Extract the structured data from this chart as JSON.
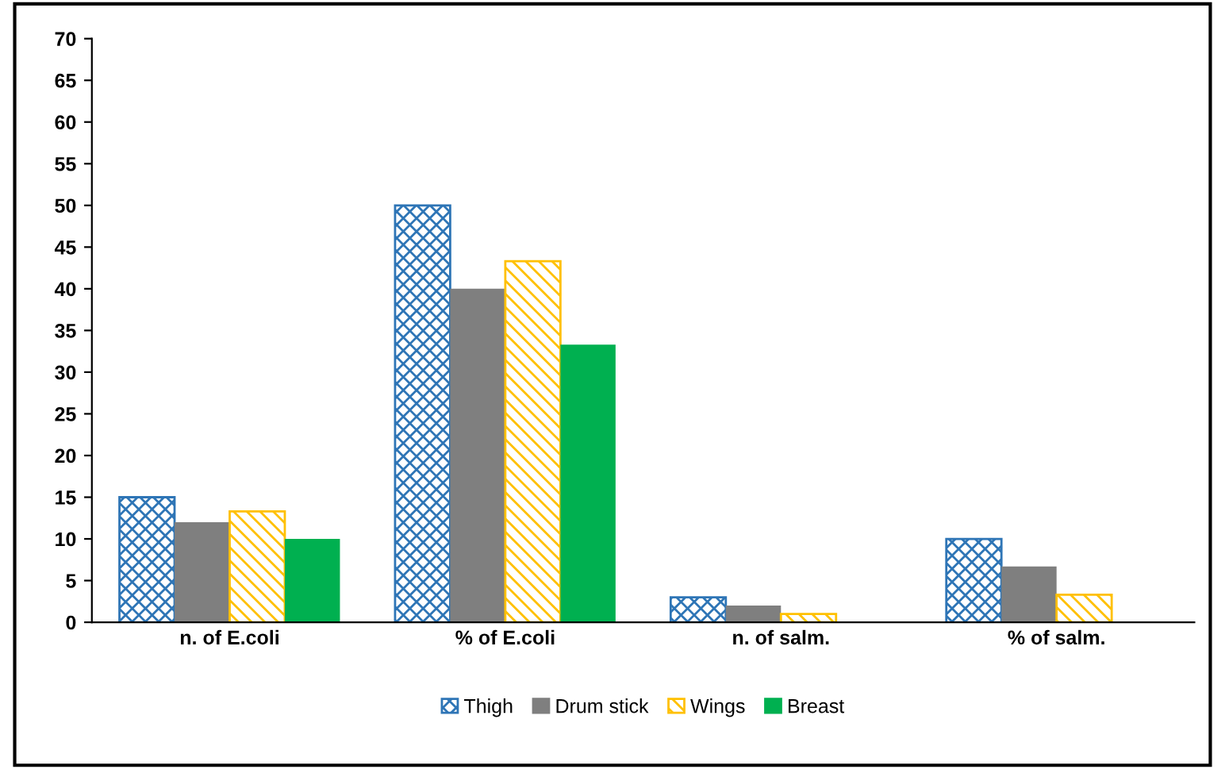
{
  "chart_data": {
    "type": "bar",
    "categories": [
      "n. of E.coli",
      "% of E.coli",
      "n. of salm.",
      "% of salm."
    ],
    "series": [
      {
        "name": "Thigh",
        "color": "#2e75b6",
        "values": [
          15,
          50,
          3,
          10
        ]
      },
      {
        "name": "Drum stick",
        "color": "#7f7f7f",
        "values": [
          12,
          40,
          2,
          6.7
        ]
      },
      {
        "name": "Wings",
        "color": "#ffc000",
        "values": [
          13.3,
          43.3,
          1,
          3.3
        ]
      },
      {
        "name": "Breast",
        "color": "#00b050",
        "values": [
          10,
          33.3,
          0,
          0
        ]
      }
    ],
    "ylim": [
      0,
      70
    ],
    "yticks": [
      0,
      5,
      10,
      15,
      20,
      25,
      30,
      35,
      40,
      45,
      50,
      55,
      60,
      65,
      70
    ],
    "grid": false,
    "legend": "bottom"
  }
}
